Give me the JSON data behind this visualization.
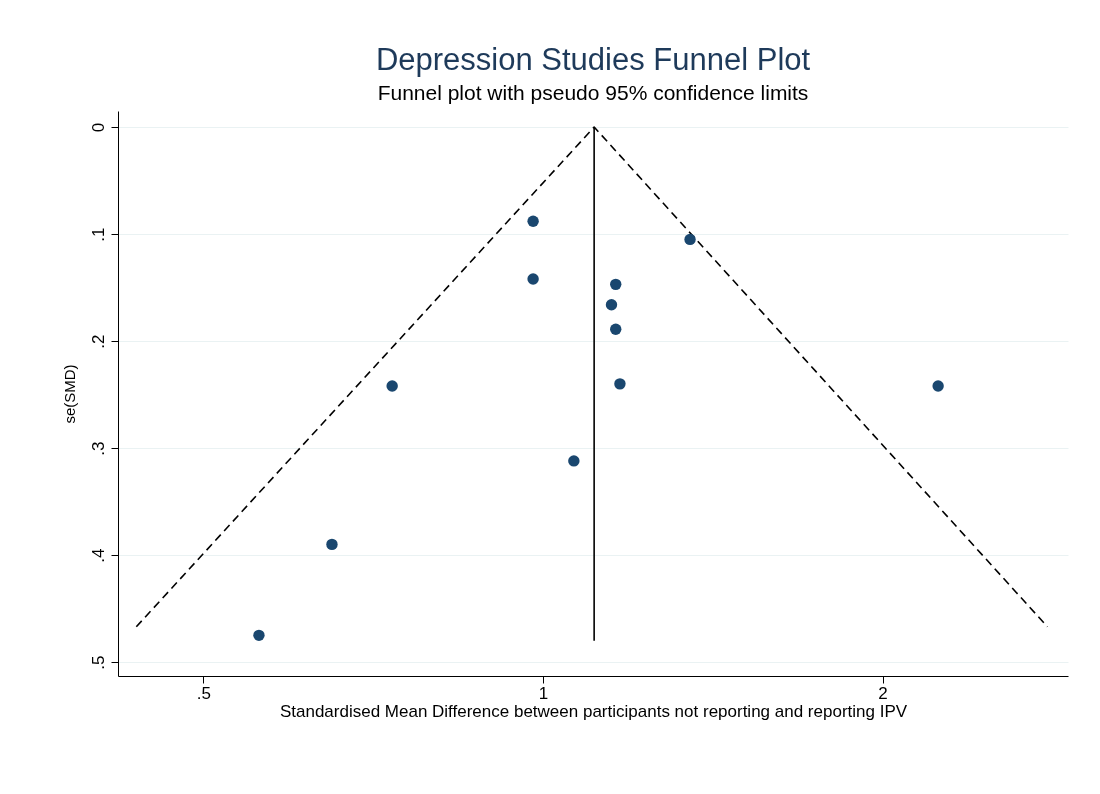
{
  "chart_data": {
    "type": "scatter",
    "title": "Depression Studies Funnel Plot",
    "subtitle": "Funnel plot with pseudo 95% confidence limits",
    "xlabel": "Standardised Mean Difference between participants not reporting and reporting IPV",
    "ylabel": "se(SMD)",
    "log": "x",
    "xlim": [
      0.42,
      2.92
    ],
    "xticks": [
      {
        "value": 0.5,
        "label": ".5"
      },
      1,
      2
    ],
    "ylim": [
      0.513,
      -0.015
    ],
    "yticks": [
      0,
      {
        "value": 0.1,
        "label": ".1"
      },
      {
        "value": 0.2,
        "label": ".2"
      },
      {
        "value": 0.3,
        "label": ".3"
      },
      {
        "value": 0.4,
        "label": ".4"
      },
      {
        "value": 0.5,
        "label": ".5"
      }
    ],
    "grid": "y",
    "series": [
      {
        "type": "line",
        "color": "#000000",
        "line_style": "dashed",
        "x": [
          0.436,
          1.11,
          2.8
        ],
        "values": [
          0.467,
          0,
          0.467
        ]
      },
      {
        "type": "line",
        "color": "#000000",
        "line_style": "solid",
        "x": [
          1.11,
          1.11
        ],
        "values": [
          0,
          0.48
        ]
      },
      {
        "color": "#1a476f",
        "marker": "circle",
        "x": [
          0.98,
          1.35,
          0.98,
          1.16,
          1.15,
          1.16,
          1.17,
          0.735,
          2.24,
          1.065,
          0.65,
          0.56
        ],
        "values": [
          0.088,
          0.105,
          0.142,
          0.147,
          0.166,
          0.189,
          0.24,
          0.242,
          0.242,
          0.312,
          0.39,
          0.475
        ]
      }
    ]
  }
}
